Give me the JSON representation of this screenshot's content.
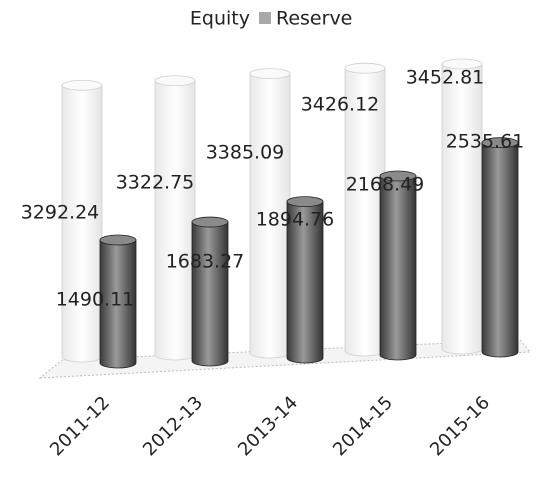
{
  "chart_data": {
    "type": "bar3d",
    "categories": [
      "2011-12",
      "2012-13",
      "2013-14",
      "2014-15",
      "2015-16"
    ],
    "series": [
      {
        "name": "Equity",
        "color": "#ffffff",
        "values": [
          3292.24,
          3322.75,
          3385.09,
          3426.12,
          3452.81
        ]
      },
      {
        "name": "Reserve",
        "color": "#6e6e6e",
        "values": [
          1490.11,
          1683.27,
          1894.76,
          2168.49,
          2535.61
        ]
      }
    ],
    "legend": "top"
  }
}
